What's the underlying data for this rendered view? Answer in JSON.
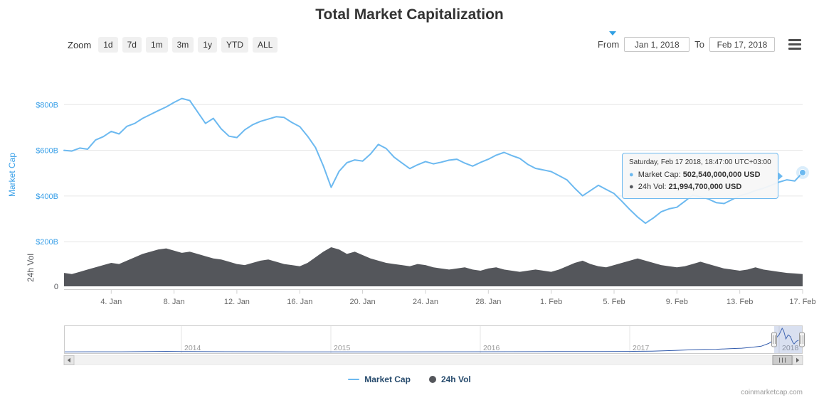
{
  "page": {
    "title": "Total Market Capitalization",
    "credits": "coinmarketcap.com"
  },
  "toolbar": {
    "zoom_label": "Zoom",
    "zoom_buttons": [
      "1d",
      "7d",
      "1m",
      "3m",
      "1y",
      "YTD",
      "ALL"
    ],
    "from_label": "From",
    "from_value": "Jan 1, 2018",
    "to_label": "To",
    "to_value": "Feb 17, 2018"
  },
  "tooltip": {
    "header": "Saturday, Feb 17 2018, 18:47:00 UTC+03:00",
    "rows": [
      {
        "label": "Market Cap:",
        "value": "502,540,000,000 USD",
        "color": "#6cb9f0"
      },
      {
        "label": "24h Vol:",
        "value": "21,994,700,000 USD",
        "color": "#54565b"
      }
    ]
  },
  "legend": [
    {
      "label": "Market Cap",
      "symbol": "line",
      "color": "#6cb9f0"
    },
    {
      "label": "24h Vol",
      "symbol": "circle",
      "color": "#54565b"
    }
  ],
  "colors": {
    "market_cap_line": "#6cb9f0",
    "market_cap_axis": "#3aa0e8",
    "volume_fill": "#54565b",
    "axis_text": "#666666",
    "grid": "#e6e6e6",
    "axis_line": "#d0d0d0",
    "navigator_line": "#335cad",
    "navigator_mask": "rgba(102,133,194,0.25)",
    "navigator_year_text": "#999999"
  },
  "chart_data": {
    "type": "line",
    "title": "Total Market Capitalization",
    "x_start": "2018-01-01",
    "x_end": "2018-02-17",
    "x_step_days": 0.5,
    "x_axis_tick_labels": [
      "4. Jan",
      "8. Jan",
      "12. Jan",
      "16. Jan",
      "20. Jan",
      "24. Jan",
      "28. Jan",
      "1. Feb",
      "5. Feb",
      "9. Feb",
      "13. Feb",
      "17. Feb"
    ],
    "x_axis_tick_day_index": [
      3,
      7,
      11,
      15,
      19,
      23,
      27,
      31,
      35,
      39,
      43,
      47
    ],
    "y_axis_left": {
      "title": "Market Cap",
      "tick_labels": [
        "$200B",
        "$400B",
        "$600B",
        "$800B"
      ],
      "tick_values_billion": [
        200,
        400,
        600,
        800
      ],
      "unit": "USD"
    },
    "y_axis_volume": {
      "title": "24h Vol",
      "tick_labels": [
        "0"
      ]
    },
    "series": [
      {
        "name": "Market Cap",
        "type": "line",
        "color": "#6cb9f0",
        "unit": "billion USD",
        "values": [
          600,
          597,
          610,
          605,
          645,
          660,
          683,
          672,
          705,
          718,
          740,
          757,
          774,
          790,
          810,
          827,
          818,
          768,
          718,
          740,
          694,
          662,
          656,
          690,
          712,
          727,
          737,
          747,
          744,
          722,
          704,
          662,
          612,
          532,
          438,
          508,
          546,
          558,
          553,
          584,
          626,
          608,
          570,
          545,
          520,
          537,
          551,
          541,
          548,
          557,
          561,
          544,
          531,
          547,
          561,
          579,
          591,
          577,
          565,
          539,
          521,
          514,
          507,
          489,
          471,
          434,
          401,
          424,
          447,
          429,
          411,
          377,
          341,
          308,
          281,
          304,
          331,
          344,
          351,
          377,
          404,
          397,
          387,
          371,
          367,
          384,
          401,
          411,
          424,
          434,
          447,
          461,
          471,
          466,
          502.54
        ]
      },
      {
        "name": "24h Vol",
        "type": "area",
        "color": "#54565b",
        "unit": "billion USD",
        "values": [
          24,
          22,
          26,
          30,
          34,
          38,
          42,
          40,
          46,
          52,
          58,
          62,
          66,
          68,
          64,
          60,
          62,
          58,
          54,
          50,
          48,
          44,
          40,
          38,
          42,
          46,
          48,
          44,
          40,
          38,
          36,
          42,
          52,
          62,
          70,
          66,
          58,
          62,
          56,
          50,
          46,
          42,
          40,
          38,
          36,
          40,
          38,
          34,
          32,
          30,
          32,
          34,
          30,
          28,
          32,
          34,
          30,
          28,
          26,
          28,
          30,
          28,
          26,
          30,
          36,
          42,
          46,
          40,
          36,
          34,
          38,
          42,
          46,
          50,
          46,
          42,
          38,
          36,
          34,
          36,
          40,
          44,
          40,
          36,
          32,
          30,
          28,
          30,
          34,
          30,
          28,
          26,
          24,
          23,
          22
        ]
      }
    ],
    "last_point": {
      "label": "Saturday, Feb 17 2018, 18:47:00 UTC+03:00",
      "market_cap_usd": "502,540,000,000",
      "volume_24h_usd": "21,994,700,000"
    },
    "navigator": {
      "year_labels": [
        "2014",
        "2015",
        "2016",
        "2017",
        "2018"
      ],
      "selected_range": {
        "from": "Jan 1, 2018",
        "to": "Feb 17, 2018"
      },
      "series": {
        "name": "Market Cap (all time, normalized)",
        "color": "#335cad",
        "points_year_level": [
          [
            2013.214,
            0.01
          ],
          [
            2013.6,
            0.012
          ],
          [
            2013.9,
            0.03
          ],
          [
            2014.05,
            0.022
          ],
          [
            2014.3,
            0.015
          ],
          [
            2014.7,
            0.01
          ],
          [
            2015.1,
            0.008
          ],
          [
            2015.5,
            0.009
          ],
          [
            2015.9,
            0.012
          ],
          [
            2016.2,
            0.016
          ],
          [
            2016.5,
            0.02
          ],
          [
            2016.8,
            0.022
          ],
          [
            2017.0,
            0.026
          ],
          [
            2017.15,
            0.04
          ],
          [
            2017.3,
            0.065
          ],
          [
            2017.42,
            0.095
          ],
          [
            2017.5,
            0.11
          ],
          [
            2017.58,
            0.115
          ],
          [
            2017.67,
            0.14
          ],
          [
            2017.75,
            0.16
          ],
          [
            2017.82,
            0.2
          ],
          [
            2017.88,
            0.245
          ],
          [
            2017.93,
            0.36
          ],
          [
            2017.97,
            0.52
          ],
          [
            2018.0,
            0.73
          ],
          [
            2018.02,
            1.0
          ],
          [
            2018.03,
            0.9
          ],
          [
            2018.045,
            0.55
          ],
          [
            2018.06,
            0.72
          ],
          [
            2018.075,
            0.65
          ],
          [
            2018.09,
            0.42
          ],
          [
            2018.1,
            0.34
          ],
          [
            2018.115,
            0.45
          ],
          [
            2018.13,
            0.5
          ]
        ]
      }
    }
  }
}
